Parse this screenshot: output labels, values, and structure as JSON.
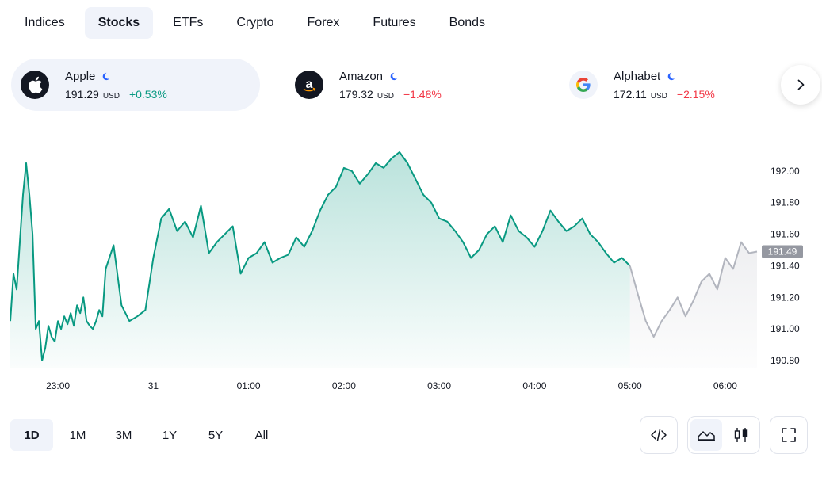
{
  "market_tabs": [
    {
      "label": "Indices",
      "active": false
    },
    {
      "label": "Stocks",
      "active": true
    },
    {
      "label": "ETFs",
      "active": false
    },
    {
      "label": "Crypto",
      "active": false
    },
    {
      "label": "Forex",
      "active": false
    },
    {
      "label": "Futures",
      "active": false
    },
    {
      "label": "Bonds",
      "active": false
    }
  ],
  "symbols": [
    {
      "name": "Apple",
      "price": "191.29",
      "currency": "USD",
      "change": "+0.53%",
      "direction": "up",
      "logo": "apple-logo-icon",
      "active": true
    },
    {
      "name": "Amazon",
      "price": "179.32",
      "currency": "USD",
      "change": "−1.48%",
      "direction": "down",
      "logo": "amazon-logo-icon",
      "active": false
    },
    {
      "name": "Alphabet",
      "price": "172.11",
      "currency": "USD",
      "change": "−2.15%",
      "direction": "down",
      "logo": "google-logo-icon",
      "active": false
    }
  ],
  "range_tabs": [
    {
      "label": "1D",
      "active": true
    },
    {
      "label": "1M",
      "active": false
    },
    {
      "label": "3M",
      "active": false
    },
    {
      "label": "1Y",
      "active": false
    },
    {
      "label": "5Y",
      "active": false
    },
    {
      "label": "All",
      "active": false
    }
  ],
  "toolbar": {
    "embed_icon": "code-icon",
    "area_icon": "area-chart-icon",
    "candles_icon": "candlestick-icon",
    "fullscreen_icon": "fullscreen-icon"
  },
  "colors": {
    "up": "#089981",
    "down": "#f23645",
    "line": "#089981",
    "extended_line": "#b2b5be",
    "accent": "#f0f3fa"
  },
  "chart_data": {
    "type": "area",
    "x_ticks": [
      "23:00",
      "31",
      "01:00",
      "02:00",
      "03:00",
      "04:00",
      "05:00",
      "06:00"
    ],
    "y_ticks": [
      "192.00",
      "191.80",
      "191.60",
      "191.40",
      "191.20",
      "191.00",
      "190.80"
    ],
    "ylim": [
      190.75,
      192.18
    ],
    "last_price": "191.49",
    "x_range": [
      "22:30",
      "06:20"
    ],
    "series": [
      {
        "session": "regular",
        "x": [
          "22:30",
          "22:32",
          "22:34",
          "22:36",
          "22:38",
          "22:40",
          "22:42",
          "22:44",
          "22:46",
          "22:48",
          "22:50",
          "22:52",
          "22:54",
          "22:56",
          "22:58",
          "23:00",
          "23:02",
          "23:04",
          "23:06",
          "23:08",
          "23:10",
          "23:12",
          "23:14",
          "23:16",
          "23:18",
          "23:20",
          "23:22",
          "23:24",
          "23:26",
          "23:28",
          "23:30",
          "23:35",
          "23:40",
          "23:45",
          "23:50",
          "23:55",
          "00:00",
          "00:05",
          "00:10",
          "00:15",
          "00:20",
          "00:25",
          "00:30",
          "00:35",
          "00:40",
          "00:45",
          "00:50",
          "00:55",
          "01:00",
          "01:05",
          "01:10",
          "01:15",
          "01:20",
          "01:25",
          "01:30",
          "01:35",
          "01:40",
          "01:45",
          "01:50",
          "01:55",
          "02:00",
          "02:05",
          "02:10",
          "02:15",
          "02:20",
          "02:25",
          "02:30",
          "02:35",
          "02:40",
          "02:45",
          "02:50",
          "02:55",
          "03:00",
          "03:05",
          "03:10",
          "03:15",
          "03:20",
          "03:25",
          "03:30",
          "03:35",
          "03:40",
          "03:45",
          "03:50",
          "03:55",
          "04:00",
          "04:05",
          "04:10",
          "04:15",
          "04:20",
          "04:25",
          "04:30",
          "04:35",
          "04:40",
          "04:45",
          "04:50",
          "04:55",
          "05:00"
        ],
        "y": [
          191.05,
          191.35,
          191.25,
          191.55,
          191.85,
          192.05,
          191.85,
          191.6,
          191.0,
          191.05,
          190.8,
          190.88,
          191.02,
          190.95,
          190.92,
          191.05,
          191.0,
          191.08,
          191.03,
          191.1,
          191.02,
          191.15,
          191.1,
          191.2,
          191.05,
          191.02,
          191.0,
          191.05,
          191.12,
          191.08,
          191.38,
          191.53,
          191.15,
          191.05,
          191.08,
          191.12,
          191.45,
          191.7,
          191.76,
          191.62,
          191.68,
          191.58,
          191.78,
          191.48,
          191.55,
          191.6,
          191.65,
          191.35,
          191.45,
          191.48,
          191.55,
          191.42,
          191.45,
          191.47,
          191.58,
          191.52,
          191.62,
          191.75,
          191.85,
          191.9,
          192.02,
          192.0,
          191.92,
          191.98,
          192.05,
          192.02,
          192.08,
          192.12,
          192.05,
          191.95,
          191.85,
          191.8,
          191.7,
          191.68,
          191.62,
          191.55,
          191.45,
          191.5,
          191.6,
          191.65,
          191.55,
          191.72,
          191.62,
          191.58,
          191.52,
          191.62,
          191.75,
          191.68,
          191.62,
          191.65,
          191.7,
          191.6,
          191.55,
          191.48,
          191.42,
          191.45,
          191.4
        ]
      },
      {
        "session": "extended",
        "x": [
          "05:00",
          "05:05",
          "05:10",
          "05:15",
          "05:20",
          "05:25",
          "05:30",
          "05:35",
          "05:40",
          "05:45",
          "05:50",
          "05:55",
          "06:00",
          "06:05",
          "06:10",
          "06:15",
          "06:20"
        ],
        "y": [
          191.4,
          191.22,
          191.05,
          190.95,
          191.05,
          191.12,
          191.2,
          191.08,
          191.18,
          191.3,
          191.35,
          191.25,
          191.45,
          191.38,
          191.55,
          191.48,
          191.49
        ]
      }
    ]
  }
}
